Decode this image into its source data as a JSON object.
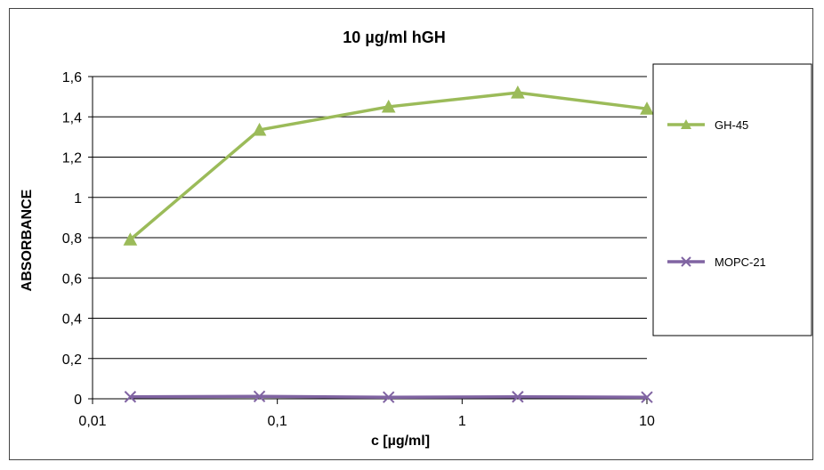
{
  "chart_data": {
    "type": "line",
    "title": "10 µg/ml hGH",
    "xlabel": "c [µg/ml]",
    "ylabel": "ABSORBANCE",
    "x_scale": "log",
    "xlim": [
      0.01,
      10
    ],
    "ylim": [
      0,
      1.6
    ],
    "x_ticks": [
      0.01,
      0.1,
      1,
      10
    ],
    "x_tick_labels": [
      "0,01",
      "0,1",
      "1",
      "10"
    ],
    "y_ticks": [
      0,
      0.2,
      0.4,
      0.6,
      0.8,
      1,
      1.2,
      1.4,
      1.6
    ],
    "y_tick_labels": [
      "0",
      "0,2",
      "0,4",
      "0,6",
      "0,8",
      "1",
      "1,2",
      "1,4",
      "1,6"
    ],
    "grid": "horizontal",
    "legend_position": "right",
    "x": [
      0.016,
      0.08,
      0.4,
      2,
      10
    ],
    "series": [
      {
        "name": "GH-45",
        "values": [
          0.79,
          1.335,
          1.45,
          1.52,
          1.44
        ],
        "color": "#9BBB59",
        "marker": "triangle"
      },
      {
        "name": "MOPC-21",
        "values": [
          0.01,
          0.012,
          0.008,
          0.01,
          0.008
        ],
        "color": "#8064A2",
        "marker": "x"
      }
    ]
  }
}
